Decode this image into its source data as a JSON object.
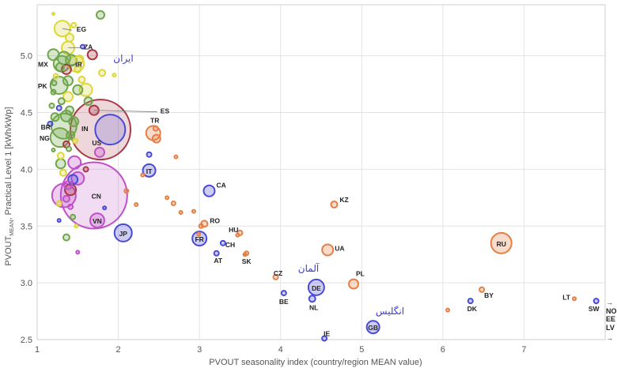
{
  "chart_data": {
    "type": "scatter",
    "title": "",
    "xlabel": "PVOUT seasonality index (country/region MEAN value)",
    "ylabel_main": "PVOUT",
    "ylabel_sub": "MEAN",
    "ylabel_rest": ", Practical Level 1  [kWh/kWp]",
    "xlim": [
      1,
      8
    ],
    "ylim": [
      2.5,
      5.45
    ],
    "xticks": [
      "1",
      "2",
      "3",
      "4",
      "5",
      "6",
      "7"
    ],
    "yticks": [
      "2.5",
      "3.0",
      "3.5",
      "4.0",
      "4.5",
      "5.0"
    ],
    "grid": true,
    "colors": {
      "yellow": "#dcd83a",
      "green": "#6fa64a",
      "darkred": "#a83846",
      "magenta": "#c050c8",
      "blue": "#4a4ad8",
      "orange": "#e57f45",
      "grid": "#e3e3e3",
      "annotation": "#3b3bd6"
    },
    "series": [
      {
        "name": "labeled countries",
        "points": [
          {
            "label": "EG",
            "x": 1.31,
            "y": 5.24,
            "size": 10,
            "color": "yellow"
          },
          {
            "label": "ZA",
            "x": 1.38,
            "y": 5.07,
            "size": 8,
            "color": "yellow"
          },
          {
            "label": "MX",
            "x": 1.3,
            "y": 4.93,
            "size": 10,
            "color": "green"
          },
          {
            "label": "IR",
            "x": 1.48,
            "y": 4.93,
            "size": 10,
            "color": "yellow"
          },
          {
            "label": "PK",
            "x": 1.27,
            "y": 4.74,
            "size": 11,
            "color": "green"
          },
          {
            "label": "ES",
            "x": 1.7,
            "y": 4.52,
            "size": 6,
            "color": "darkred"
          },
          {
            "label": "IN",
            "x": 1.78,
            "y": 4.35,
            "size": 38,
            "color": "darkred"
          },
          {
            "label": "BR",
            "x": 1.33,
            "y": 4.38,
            "size": 16,
            "color": "green"
          },
          {
            "label": "NG",
            "x": 1.28,
            "y": 4.28,
            "size": 12,
            "color": "green"
          },
          {
            "label": "TR",
            "x": 2.43,
            "y": 4.32,
            "size": 9,
            "color": "orange"
          },
          {
            "label": "US",
            "x": 1.9,
            "y": 4.35,
            "size": 19,
            "color": "blue"
          },
          {
            "label": "IT",
            "x": 2.38,
            "y": 3.99,
            "size": 8,
            "color": "blue"
          },
          {
            "label": "CN",
            "x": 1.7,
            "y": 3.77,
            "size": 42,
            "color": "magenta"
          },
          {
            "label": "VN",
            "x": 1.74,
            "y": 3.55,
            "size": 9,
            "color": "magenta"
          },
          {
            "label": "JP",
            "x": 2.06,
            "y": 3.44,
            "size": 11,
            "color": "blue"
          },
          {
            "label": "CA",
            "x": 3.12,
            "y": 3.81,
            "size": 7,
            "color": "blue"
          },
          {
            "label": "KZ",
            "x": 4.66,
            "y": 3.69,
            "size": 4,
            "color": "orange"
          },
          {
            "label": "RO",
            "x": 3.06,
            "y": 3.52,
            "size": 4,
            "color": "orange"
          },
          {
            "label": "FR",
            "x": 3,
            "y": 3.39,
            "size": 9,
            "color": "blue"
          },
          {
            "label": "HU",
            "x": 3.5,
            "y": 3.44,
            "size": 3,
            "color": "orange"
          },
          {
            "label": "CH",
            "x": 3.29,
            "y": 3.35,
            "size": 3,
            "color": "blue"
          },
          {
            "label": "AT",
            "x": 3.21,
            "y": 3.26,
            "size": 3,
            "color": "blue"
          },
          {
            "label": "SK",
            "x": 3.58,
            "y": 3.26,
            "size": 2.5,
            "color": "orange"
          },
          {
            "label": "UA",
            "x": 4.58,
            "y": 3.29,
            "size": 7,
            "color": "orange"
          },
          {
            "label": "RU",
            "x": 6.72,
            "y": 3.35,
            "size": 13,
            "color": "orange"
          },
          {
            "label": "CZ",
            "x": 3.94,
            "y": 3.05,
            "size": 3,
            "color": "orange"
          },
          {
            "label": "DE",
            "x": 4.44,
            "y": 2.96,
            "size": 10,
            "color": "blue"
          },
          {
            "label": "BE",
            "x": 4.04,
            "y": 2.91,
            "size": 3,
            "color": "blue"
          },
          {
            "label": "NL",
            "x": 4.39,
            "y": 2.86,
            "size": 4,
            "color": "blue"
          },
          {
            "label": "PL",
            "x": 4.9,
            "y": 2.99,
            "size": 6,
            "color": "orange"
          },
          {
            "label": "BY",
            "x": 6.48,
            "y": 2.94,
            "size": 3,
            "color": "orange"
          },
          {
            "label": "DK",
            "x": 6.34,
            "y": 2.84,
            "size": 3,
            "color": "blue"
          },
          {
            "label": "LT",
            "x": 7.62,
            "y": 2.86,
            "size": 2,
            "color": "orange"
          },
          {
            "label": "SW",
            "x": 7.89,
            "y": 2.84,
            "size": 3,
            "color": "blue"
          },
          {
            "label": "GB",
            "x": 5.14,
            "y": 2.61,
            "size": 8,
            "color": "blue"
          },
          {
            "label": "IE",
            "x": 4.54,
            "y": 2.51,
            "size": 3,
            "color": "blue"
          }
        ]
      },
      {
        "name": "unlabeled countries",
        "points": [
          {
            "x": 1.2,
            "y": 5.37,
            "size": 1.5,
            "color": "yellow"
          },
          {
            "x": 1.78,
            "y": 5.36,
            "size": 5,
            "color": "green"
          },
          {
            "x": 1.45,
            "y": 5.27,
            "size": 3,
            "color": "yellow"
          },
          {
            "x": 1.4,
            "y": 5.16,
            "size": 5,
            "color": "yellow"
          },
          {
            "x": 1.56,
            "y": 5.08,
            "size": 2.5,
            "color": "blue"
          },
          {
            "x": 1.2,
            "y": 5.01,
            "size": 7,
            "color": "green"
          },
          {
            "x": 1.33,
            "y": 4.98,
            "size": 8,
            "color": "green"
          },
          {
            "x": 1.68,
            "y": 5.01,
            "size": 6,
            "color": "darkred"
          },
          {
            "x": 1.42,
            "y": 4.96,
            "size": 7,
            "color": "green"
          },
          {
            "x": 1.52,
            "y": 4.97,
            "size": 5,
            "color": "yellow"
          },
          {
            "x": 1.28,
            "y": 4.9,
            "size": 5,
            "color": "green"
          },
          {
            "x": 1.36,
            "y": 4.88,
            "size": 6,
            "color": "darkred"
          },
          {
            "x": 1.8,
            "y": 4.85,
            "size": 4,
            "color": "yellow"
          },
          {
            "x": 1.5,
            "y": 4.88,
            "size": 4,
            "color": "yellow"
          },
          {
            "x": 1.23,
            "y": 4.82,
            "size": 3,
            "color": "yellow"
          },
          {
            "x": 1.95,
            "y": 4.83,
            "size": 2,
            "color": "yellow"
          },
          {
            "x": 1.38,
            "y": 4.78,
            "size": 6,
            "color": "green"
          },
          {
            "x": 1.55,
            "y": 4.79,
            "size": 4,
            "color": "yellow"
          },
          {
            "x": 1.21,
            "y": 4.76,
            "size": 3,
            "color": "green"
          },
          {
            "x": 1.6,
            "y": 4.7,
            "size": 8,
            "color": "yellow"
          },
          {
            "x": 1.5,
            "y": 4.7,
            "size": 6,
            "color": "green"
          },
          {
            "x": 1.38,
            "y": 4.64,
            "size": 6,
            "color": "yellow"
          },
          {
            "x": 1.2,
            "y": 4.68,
            "size": 3,
            "color": "green"
          },
          {
            "x": 1.3,
            "y": 4.6,
            "size": 4,
            "color": "green"
          },
          {
            "x": 1.63,
            "y": 4.6,
            "size": 5,
            "color": "green"
          },
          {
            "x": 1.18,
            "y": 4.56,
            "size": 3,
            "color": "green"
          },
          {
            "x": 1.27,
            "y": 4.54,
            "size": 3,
            "color": "blue"
          },
          {
            "x": 1.4,
            "y": 4.52,
            "size": 5,
            "color": "green"
          },
          {
            "x": 1.36,
            "y": 4.47,
            "size": 7,
            "color": "green"
          },
          {
            "x": 1.22,
            "y": 4.46,
            "size": 5,
            "color": "green"
          },
          {
            "x": 1.45,
            "y": 4.42,
            "size": 6,
            "color": "green"
          },
          {
            "x": 1.16,
            "y": 4.4,
            "size": 3,
            "color": "blue"
          },
          {
            "x": 1.41,
            "y": 4.3,
            "size": 5,
            "color": "green"
          },
          {
            "x": 1.47,
            "y": 4.25,
            "size": 3,
            "color": "yellow"
          },
          {
            "x": 1.36,
            "y": 4.22,
            "size": 4,
            "color": "darkred"
          },
          {
            "x": 1.39,
            "y": 4.18,
            "size": 3,
            "color": "green"
          },
          {
            "x": 1.29,
            "y": 4.12,
            "size": 4,
            "color": "yellow"
          },
          {
            "x": 1.2,
            "y": 4.17,
            "size": 2,
            "color": "green"
          },
          {
            "x": 1.77,
            "y": 4.15,
            "size": 6,
            "color": "magenta"
          },
          {
            "x": 1.29,
            "y": 4.05,
            "size": 6,
            "color": "green"
          },
          {
            "x": 1.46,
            "y": 4.06,
            "size": 8,
            "color": "magenta"
          },
          {
            "x": 1.6,
            "y": 4.0,
            "size": 3,
            "color": "darkred"
          },
          {
            "x": 1.32,
            "y": 3.97,
            "size": 4,
            "color": "yellow"
          },
          {
            "x": 1.5,
            "y": 3.92,
            "size": 8,
            "color": "magenta"
          },
          {
            "x": 1.44,
            "y": 3.91,
            "size": 6,
            "color": "blue"
          },
          {
            "x": 1.41,
            "y": 3.82,
            "size": 7,
            "color": "darkred"
          },
          {
            "x": 1.38,
            "y": 3.86,
            "size": 5,
            "color": "magenta"
          },
          {
            "x": 1.33,
            "y": 3.77,
            "size": 15,
            "color": "magenta"
          },
          {
            "x": 1.36,
            "y": 3.74,
            "size": 4,
            "color": "magenta"
          },
          {
            "x": 1.27,
            "y": 3.7,
            "size": 3,
            "color": "yellow"
          },
          {
            "x": 1.41,
            "y": 3.67,
            "size": 3,
            "color": "magenta"
          },
          {
            "x": 1.44,
            "y": 3.58,
            "size": 3,
            "color": "green"
          },
          {
            "x": 1.27,
            "y": 3.55,
            "size": 2,
            "color": "blue"
          },
          {
            "x": 1.36,
            "y": 3.4,
            "size": 4,
            "color": "green"
          },
          {
            "x": 1.5,
            "y": 3.27,
            "size": 2,
            "color": "magenta"
          },
          {
            "x": 1.48,
            "y": 3.5,
            "size": 2,
            "color": "yellow"
          },
          {
            "x": 1.83,
            "y": 3.66,
            "size": 2,
            "color": "blue"
          },
          {
            "x": 2.1,
            "y": 3.81,
            "size": 2.5,
            "color": "orange"
          },
          {
            "x": 2.38,
            "y": 4.13,
            "size": 3,
            "color": "blue"
          },
          {
            "x": 2.47,
            "y": 4.27,
            "size": 5,
            "color": "orange"
          },
          {
            "x": 2.46,
            "y": 4.36,
            "size": 3,
            "color": "orange"
          },
          {
            "x": 2.71,
            "y": 4.11,
            "size": 2,
            "color": "orange"
          },
          {
            "x": 2.3,
            "y": 3.95,
            "size": 2,
            "color": "orange"
          },
          {
            "x": 2.6,
            "y": 3.75,
            "size": 2,
            "color": "orange"
          },
          {
            "x": 2.68,
            "y": 3.7,
            "size": 2.5,
            "color": "orange"
          },
          {
            "x": 2.77,
            "y": 3.62,
            "size": 2,
            "color": "orange"
          },
          {
            "x": 2.93,
            "y": 3.63,
            "size": 2,
            "color": "orange"
          },
          {
            "x": 2.22,
            "y": 3.69,
            "size": 2,
            "color": "orange"
          },
          {
            "x": 3.02,
            "y": 3.5,
            "size": 2.5,
            "color": "orange"
          },
          {
            "x": 3.47,
            "y": 3.42,
            "size": 2,
            "color": "orange"
          },
          {
            "x": 3.56,
            "y": 3.25,
            "size": 2,
            "color": "orange"
          },
          {
            "x": 6.06,
            "y": 2.76,
            "size": 2,
            "color": "orange"
          },
          {
            "x": 2.99,
            "y": 3.43,
            "size": 2,
            "color": "orange"
          }
        ]
      }
    ],
    "side_labels": [
      "NO",
      "EE",
      "LV"
    ],
    "arrow_glyph": "→"
  },
  "annotations": {
    "iran": "ایران",
    "germany": "آلمان",
    "england": "انگلیس"
  }
}
